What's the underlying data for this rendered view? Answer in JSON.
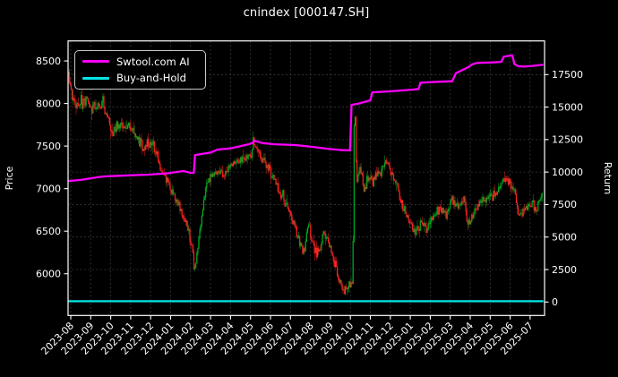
{
  "title": "cnindex [000147.SH]",
  "colors": {
    "background": "#000000",
    "text": "#ffffff",
    "grid": "#3a3a3a",
    "spine": "#ffffff",
    "up_candle": "#00a820",
    "down_candle": "#f52020",
    "ai_line": "#ff00ff",
    "buyhold_line": "#00e5e5"
  },
  "legend": {
    "items": [
      {
        "id": "swtool-ai",
        "label": "Swtool.com AI",
        "color": "#ff00ff"
      },
      {
        "id": "buy-and-hold",
        "label": "Buy-and-Hold",
        "color": "#00e5e5"
      }
    ]
  },
  "chart_data": {
    "type": "candlestick+line",
    "title": "cnindex [000147.SH]",
    "x_tick_labels": [
      "2023-08",
      "2023-09",
      "2023-10",
      "2023-11",
      "2023-12",
      "2024-01",
      "2024-02",
      "2024-03",
      "2024-04",
      "2024-05",
      "2024-06",
      "2024-07",
      "2024-08",
      "2024-09",
      "2024-10",
      "2024-11",
      "2024-12",
      "2025-01",
      "2025-02",
      "2025-03",
      "2025-04",
      "2025-05",
      "2025-06",
      "2025-07"
    ],
    "left_axis": {
      "label": "Price",
      "ticks": [
        6000,
        6500,
        7000,
        7500,
        8000,
        8500
      ],
      "range": [
        5510,
        8735
      ]
    },
    "right_axis": {
      "label": "Return",
      "ticks": [
        0,
        2500,
        5000,
        7500,
        10000,
        12500,
        15000,
        17500
      ],
      "range": [
        -1035,
        20090
      ]
    },
    "grid": {
      "vertical": "monthly",
      "horizontal": "right_axis_ticks",
      "style": "dashed"
    },
    "legend_position": "upper-left",
    "series": [
      {
        "name": "Swtool.com AI",
        "type": "line",
        "axis": "right",
        "keypoints": [
          [
            -0.15,
            9310
          ],
          [
            0.5,
            9400
          ],
          [
            1.0,
            9520
          ],
          [
            1.6,
            9660
          ],
          [
            2.5,
            9720
          ],
          [
            3.9,
            9800
          ],
          [
            4.8,
            9900
          ],
          [
            5.65,
            10080
          ],
          [
            6.0,
            9940
          ],
          [
            6.16,
            9940
          ],
          [
            6.22,
            11315
          ],
          [
            7.0,
            11500
          ],
          [
            7.35,
            11730
          ],
          [
            8.0,
            11820
          ],
          [
            8.9,
            12140
          ],
          [
            9.1,
            12230
          ],
          [
            9.18,
            12420
          ],
          [
            9.6,
            12230
          ],
          [
            10.2,
            12140
          ],
          [
            11.25,
            12075
          ],
          [
            12.15,
            11935
          ],
          [
            12.8,
            11800
          ],
          [
            13.5,
            11700
          ],
          [
            13.98,
            11660
          ],
          [
            14.06,
            15170
          ],
          [
            14.5,
            15300
          ],
          [
            15.0,
            15520
          ],
          [
            15.1,
            16135
          ],
          [
            15.9,
            16205
          ],
          [
            16.5,
            16270
          ],
          [
            17.1,
            16340
          ],
          [
            17.42,
            16400
          ],
          [
            17.5,
            16875
          ],
          [
            18.4,
            16950
          ],
          [
            19.1,
            16990
          ],
          [
            19.28,
            17600
          ],
          [
            19.9,
            18070
          ],
          [
            20.1,
            18290
          ],
          [
            20.35,
            18400
          ],
          [
            21.0,
            18430
          ],
          [
            21.55,
            18480
          ],
          [
            21.68,
            18880
          ],
          [
            22.1,
            18985
          ],
          [
            22.22,
            18300
          ],
          [
            22.4,
            18150
          ],
          [
            22.7,
            18120
          ],
          [
            23.1,
            18170
          ],
          [
            23.62,
            18250
          ]
        ]
      },
      {
        "name": "Buy-and-Hold",
        "type": "line",
        "axis": "right",
        "keypoints": [
          [
            -0.15,
            60
          ],
          [
            23.62,
            60
          ]
        ]
      },
      {
        "name": "cnindex OHLC",
        "type": "candlestick",
        "axis": "left",
        "candles": 480,
        "daily_volatility": 0.009,
        "keypoints": [
          [
            -0.15,
            8420
          ],
          [
            0.0,
            8150
          ],
          [
            0.25,
            7950
          ],
          [
            0.8,
            8060
          ],
          [
            1.0,
            7920
          ],
          [
            1.6,
            8010
          ],
          [
            2.1,
            7650
          ],
          [
            2.5,
            7780
          ],
          [
            3.0,
            7720
          ],
          [
            3.6,
            7500
          ],
          [
            4.0,
            7560
          ],
          [
            4.5,
            7230
          ],
          [
            5.2,
            6900
          ],
          [
            5.7,
            6650
          ],
          [
            6.1,
            6300
          ],
          [
            6.19,
            6020
          ],
          [
            6.45,
            6500
          ],
          [
            6.8,
            7050
          ],
          [
            7.2,
            7200
          ],
          [
            7.8,
            7180
          ],
          [
            8.2,
            7300
          ],
          [
            8.7,
            7360
          ],
          [
            9.0,
            7420
          ],
          [
            9.15,
            7550
          ],
          [
            9.4,
            7450
          ],
          [
            9.8,
            7300
          ],
          [
            10.2,
            7100
          ],
          [
            10.6,
            6900
          ],
          [
            11.0,
            6700
          ],
          [
            11.3,
            6500
          ],
          [
            11.65,
            6240
          ],
          [
            11.9,
            6590
          ],
          [
            12.2,
            6300
          ],
          [
            12.45,
            6240
          ],
          [
            12.65,
            6500
          ],
          [
            12.95,
            6350
          ],
          [
            13.25,
            6100
          ],
          [
            13.45,
            5920
          ],
          [
            13.65,
            5780
          ],
          [
            13.85,
            5870
          ],
          [
            14.12,
            5900
          ],
          [
            14.2,
            8200
          ],
          [
            14.32,
            7050
          ],
          [
            14.5,
            7300
          ],
          [
            14.65,
            6980
          ],
          [
            14.9,
            7150
          ],
          [
            15.1,
            7080
          ],
          [
            15.45,
            7180
          ],
          [
            15.75,
            7330
          ],
          [
            15.95,
            7230
          ],
          [
            16.25,
            7080
          ],
          [
            16.6,
            6820
          ],
          [
            17.0,
            6560
          ],
          [
            17.25,
            6470
          ],
          [
            17.55,
            6620
          ],
          [
            17.8,
            6530
          ],
          [
            18.15,
            6660
          ],
          [
            18.5,
            6800
          ],
          [
            18.8,
            6700
          ],
          [
            19.1,
            6860
          ],
          [
            19.4,
            6780
          ],
          [
            19.7,
            6910
          ],
          [
            19.88,
            6560
          ],
          [
            20.1,
            6690
          ],
          [
            20.5,
            6830
          ],
          [
            21.0,
            6910
          ],
          [
            21.45,
            6990
          ],
          [
            21.8,
            7130
          ],
          [
            22.05,
            7050
          ],
          [
            22.3,
            6860
          ],
          [
            22.45,
            6670
          ],
          [
            22.7,
            6770
          ],
          [
            23.05,
            6820
          ],
          [
            23.3,
            6750
          ],
          [
            23.62,
            6950
          ]
        ]
      }
    ]
  }
}
